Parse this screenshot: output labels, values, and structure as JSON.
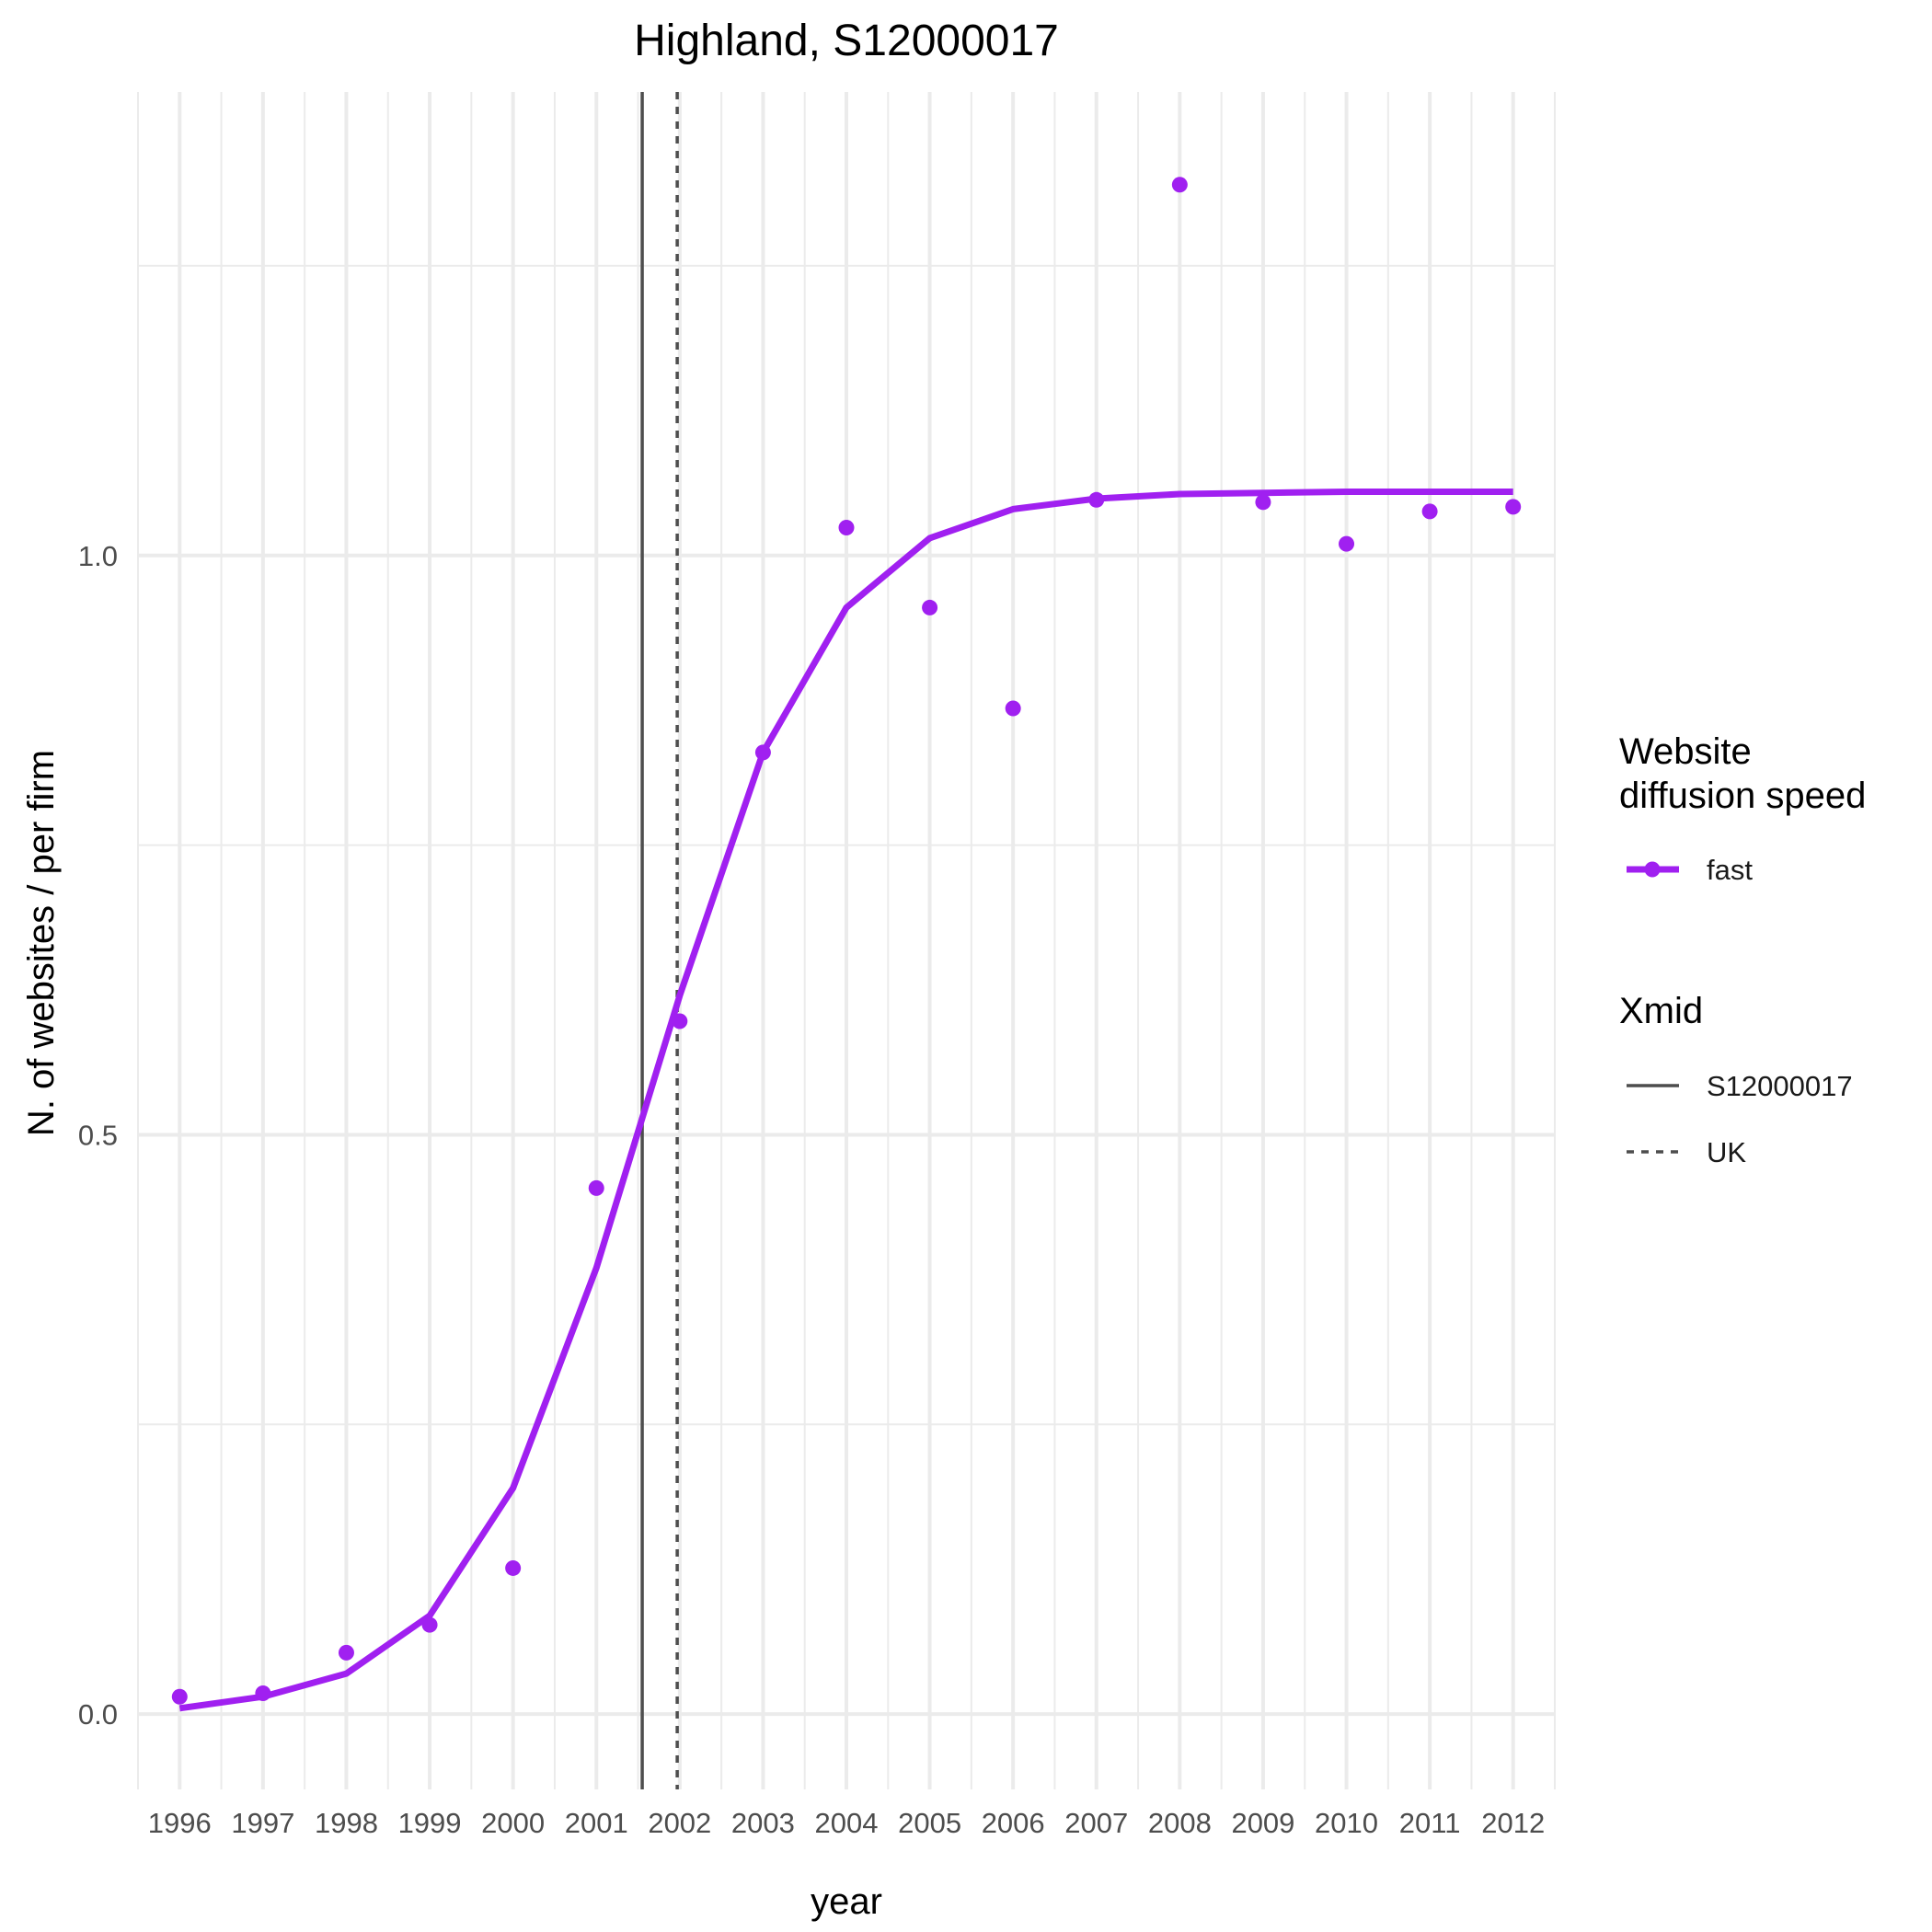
{
  "chart_data": {
    "type": "line",
    "title": "Highland, S12000017",
    "xlabel": "year",
    "ylabel": "N. of websites / per firm",
    "x_ticks": [
      "1996",
      "1997",
      "1998",
      "1999",
      "2000",
      "2001",
      "2002",
      "2003",
      "2004",
      "2005",
      "2006",
      "2007",
      "2008",
      "2009",
      "2010",
      "2011",
      "2012"
    ],
    "y_ticks": [
      "0.0",
      "0.5",
      "1.0"
    ],
    "xlim": [
      1995.5,
      2012.5
    ],
    "ylim": [
      -0.065,
      1.4
    ],
    "grid": true,
    "legend_position": "right",
    "series": [
      {
        "name": "fast",
        "color": "#a020f0",
        "x": [
          1996,
          1997,
          1998,
          1999,
          2000,
          2001,
          2002,
          2003,
          2004,
          2005,
          2006,
          2007,
          2008,
          2009,
          2010,
          2011,
          2012
        ],
        "fitted": [
          0.005,
          0.015,
          0.035,
          0.085,
          0.195,
          0.385,
          0.62,
          0.83,
          0.955,
          1.015,
          1.04,
          1.049,
          1.053,
          1.054,
          1.055,
          1.055,
          1.055
        ],
        "observed": [
          0.015,
          0.018,
          0.053,
          0.077,
          0.126,
          0.454,
          0.598,
          0.83,
          1.024,
          0.955,
          0.868,
          1.048,
          1.32,
          1.046,
          1.01,
          1.038,
          1.042
        ]
      }
    ],
    "vlines": [
      {
        "name": "S12000017",
        "x": 2001.55,
        "linetype": "solid",
        "color": "#4d4d4d"
      },
      {
        "name": "UK",
        "x": 2001.97,
        "linetype": "dashed",
        "color": "#4d4d4d"
      }
    ],
    "legend": [
      {
        "title": "Website\ndiffusion speed",
        "entries": [
          {
            "label": "fast",
            "type": "line-point",
            "color": "#a020f0"
          }
        ]
      },
      {
        "title": "Xmid",
        "entries": [
          {
            "label": "S12000017",
            "type": "solid-line",
            "color": "#4d4d4d"
          },
          {
            "label": "UK",
            "type": "dashed-line",
            "color": "#4d4d4d"
          }
        ]
      }
    ]
  }
}
